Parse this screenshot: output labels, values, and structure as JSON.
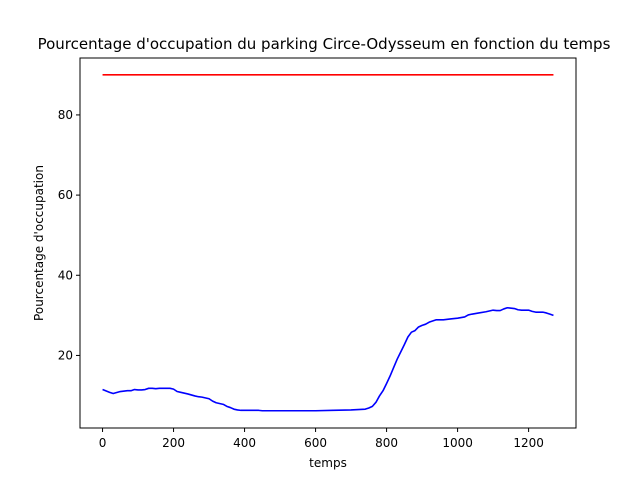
{
  "chart_data": {
    "type": "line",
    "title": "Pourcentage d'occupation du parking Circe-Odysseum en fonction du temps",
    "xlabel": "temps",
    "ylabel": "Pourcentage d'occupation",
    "xlim": [
      -63.5,
      1333.5
    ],
    "ylim": [
      1.9,
      94.2
    ],
    "x_ticks": [
      0,
      200,
      400,
      600,
      800,
      1000,
      1200
    ],
    "y_ticks": [
      20,
      40,
      60,
      80
    ],
    "grid": false,
    "legend": "none",
    "series": [
      {
        "color": "#ff0000",
        "x": [
          0,
          1270
        ],
        "values": [
          90,
          90
        ]
      },
      {
        "color": "#0000ff",
        "x": [
          0,
          20,
          30,
          50,
          70,
          80,
          90,
          100,
          110,
          120,
          130,
          140,
          150,
          160,
          180,
          190,
          200,
          210,
          220,
          240,
          260,
          270,
          280,
          300,
          310,
          320,
          340,
          350,
          360,
          370,
          380,
          390,
          400,
          440,
          450,
          500,
          600,
          650,
          700,
          740,
          750,
          760,
          770,
          780,
          790,
          800,
          810,
          820,
          830,
          840,
          850,
          860,
          870,
          880,
          890,
          900,
          910,
          920,
          940,
          950,
          960,
          980,
          1000,
          1020,
          1030,
          1040,
          1060,
          1080,
          1100,
          1110,
          1120,
          1130,
          1140,
          1160,
          1170,
          1180,
          1190,
          1200,
          1210,
          1220,
          1240,
          1250,
          1260,
          1270
        ],
        "values": [
          11.5,
          10.8,
          10.5,
          11.0,
          11.2,
          11.2,
          11.5,
          11.4,
          11.4,
          11.5,
          11.8,
          11.8,
          11.7,
          11.8,
          11.8,
          11.8,
          11.6,
          11.0,
          10.8,
          10.4,
          9.9,
          9.7,
          9.6,
          9.2,
          8.6,
          8.2,
          7.8,
          7.3,
          7.0,
          6.6,
          6.4,
          6.3,
          6.3,
          6.3,
          6.2,
          6.2,
          6.2,
          6.3,
          6.4,
          6.6,
          6.9,
          7.3,
          8.3,
          9.9,
          11.2,
          13.0,
          14.9,
          17.0,
          19.1,
          20.9,
          22.7,
          24.6,
          25.8,
          26.2,
          27.1,
          27.5,
          27.8,
          28.3,
          28.9,
          28.9,
          28.9,
          29.1,
          29.3,
          29.6,
          30.1,
          30.3,
          30.6,
          30.9,
          31.3,
          31.2,
          31.2,
          31.6,
          31.9,
          31.7,
          31.4,
          31.3,
          31.3,
          31.3,
          31.0,
          30.8,
          30.8,
          30.6,
          30.3,
          30.0
        ]
      }
    ]
  }
}
